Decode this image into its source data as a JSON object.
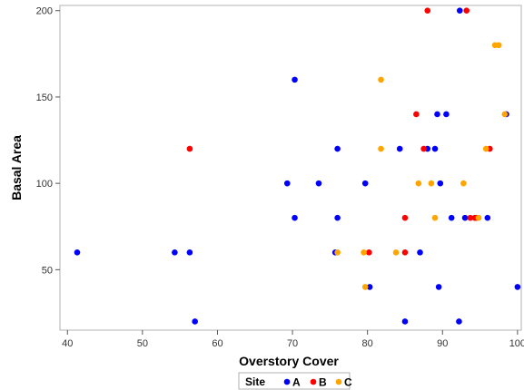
{
  "chart_data": {
    "type": "scatter",
    "xlabel": "Overstory Cover",
    "ylabel": "Basal Area",
    "xlim": [
      39,
      100.5
    ],
    "ylim": [
      15,
      203
    ],
    "xticks": [
      40,
      50,
      60,
      70,
      80,
      90,
      100
    ],
    "yticks": [
      50,
      100,
      150,
      200
    ],
    "grid": false,
    "legend": {
      "title": "Site",
      "placement": "bottom-center"
    },
    "series": [
      {
        "name": "A",
        "color": "#0000ff",
        "points": [
          [
            41.3,
            60
          ],
          [
            54.3,
            60
          ],
          [
            56.3,
            60
          ],
          [
            57,
            20
          ],
          [
            69.3,
            100
          ],
          [
            70.3,
            160
          ],
          [
            70.3,
            80
          ],
          [
            73.5,
            100
          ],
          [
            75.7,
            60
          ],
          [
            76,
            120
          ],
          [
            76,
            80
          ],
          [
            79.7,
            100
          ],
          [
            80.3,
            40
          ],
          [
            84.3,
            120
          ],
          [
            85,
            20
          ],
          [
            87,
            60
          ],
          [
            88,
            120
          ],
          [
            89,
            120
          ],
          [
            89.3,
            140
          ],
          [
            89.5,
            40
          ],
          [
            89.7,
            100
          ],
          [
            90.5,
            140
          ],
          [
            91.2,
            80
          ],
          [
            92.2,
            20
          ],
          [
            92.3,
            200
          ],
          [
            93,
            80
          ],
          [
            96,
            80
          ],
          [
            98.5,
            140
          ],
          [
            100,
            40
          ]
        ]
      },
      {
        "name": "B",
        "color": "#ff0000",
        "points": [
          [
            56.3,
            120
          ],
          [
            80.2,
            60
          ],
          [
            85,
            80
          ],
          [
            85,
            60
          ],
          [
            86.5,
            140
          ],
          [
            87.5,
            120
          ],
          [
            88,
            200
          ],
          [
            93.2,
            200
          ],
          [
            93.7,
            80
          ],
          [
            94.3,
            80
          ],
          [
            94.5,
            80
          ],
          [
            96.3,
            120
          ]
        ]
      },
      {
        "name": "C",
        "color": "#ffa500",
        "points": [
          [
            76,
            60
          ],
          [
            79.5,
            60
          ],
          [
            79.7,
            40
          ],
          [
            81.8,
            160
          ],
          [
            81.8,
            120
          ],
          [
            83.8,
            60
          ],
          [
            86.8,
            100
          ],
          [
            88.5,
            100
          ],
          [
            89,
            80
          ],
          [
            92.8,
            100
          ],
          [
            94.8,
            80
          ],
          [
            95.8,
            120
          ],
          [
            97,
            180
          ],
          [
            97.5,
            180
          ],
          [
            98.3,
            140
          ]
        ]
      }
    ]
  }
}
